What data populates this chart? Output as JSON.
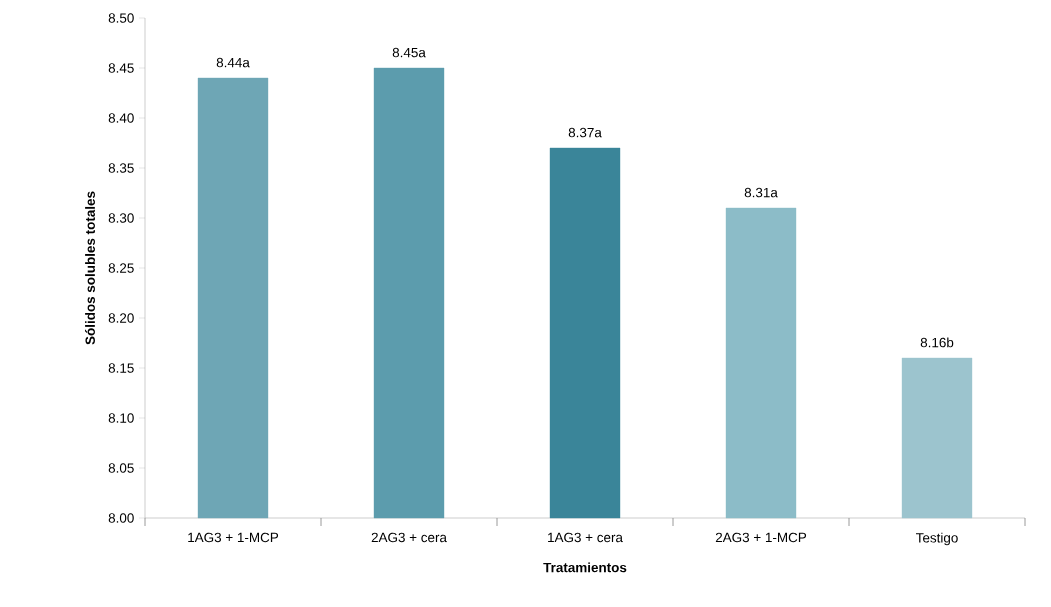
{
  "chart_data": {
    "type": "bar",
    "xlabel": "Tratamientos",
    "ylabel": "Sólidos solubles totales",
    "categories": [
      "1AG3 + 1-MCP",
      "2AG3 + cera",
      "1AG3 + cera",
      "2AG3 + 1-MCP",
      "Testigo"
    ],
    "values": [
      8.44,
      8.45,
      8.37,
      8.31,
      8.16
    ],
    "value_labels": [
      "8.44a",
      "8.45a",
      "8.37a",
      "8.31a",
      "8.16b"
    ],
    "colors": [
      "#6ea6b5",
      "#5c9cad",
      "#3a8599",
      "#8cbcc8",
      "#9cc4ce"
    ],
    "ylim": [
      8.0,
      8.5
    ],
    "yticks": [
      {
        "value": 8.0,
        "label": "8.00"
      },
      {
        "value": 8.05,
        "label": "8.05"
      },
      {
        "value": 8.1,
        "label": "8.10"
      },
      {
        "value": 8.15,
        "label": "8.15"
      },
      {
        "value": 8.2,
        "label": "8.20"
      },
      {
        "value": 8.25,
        "label": "8.25"
      },
      {
        "value": 8.3,
        "label": "8.30"
      },
      {
        "value": 8.35,
        "label": "8.35"
      },
      {
        "value": 8.4,
        "label": "8.40"
      },
      {
        "value": 8.45,
        "label": "8.45"
      },
      {
        "value": 8.5,
        "label": "8.50"
      }
    ],
    "grid": false
  }
}
